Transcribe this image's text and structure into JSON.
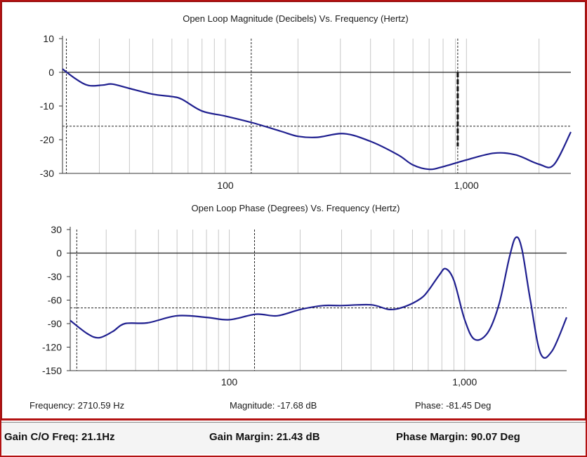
{
  "chart_data": [
    {
      "type": "line",
      "title": "Open Loop Magnitude (Decibels) Vs. Frequency (Hertz)",
      "x_scale": "log",
      "xlim": [
        21.1,
        2710.59
      ],
      "ylim": [
        -30,
        10
      ],
      "yticks": [
        10,
        0,
        -10,
        -20,
        -30
      ],
      "xticks": [
        {
          "value": 100,
          "label": "100"
        },
        {
          "value": 1000,
          "label": "1,000"
        }
      ],
      "grid": true,
      "reference_lines": {
        "h": [
          0,
          -16
        ],
        "v": [
          21.9,
          128,
          920
        ]
      },
      "marker": {
        "x": 920,
        "y_from": 0,
        "y_to": -22,
        "style": "dashed-bold"
      },
      "series": [
        {
          "color": "#1f1f8f",
          "x": [
            21.1,
            24,
            27,
            31,
            34,
            40,
            50,
            60,
            66,
            80,
            100,
            130,
            170,
            200,
            240,
            310,
            400,
            520,
            600,
            700,
            800,
            1000,
            1300,
            1600,
            2000,
            2300,
            2710.59
          ],
          "y": [
            1,
            -2,
            -3.9,
            -3.8,
            -3.5,
            -4.8,
            -6.5,
            -7.2,
            -8,
            -11.5,
            -13,
            -15,
            -17.5,
            -19,
            -19.3,
            -18.2,
            -20.5,
            -24.5,
            -27.5,
            -28.8,
            -28,
            -26,
            -24,
            -24.5,
            -27.3,
            -27.5,
            -17.7
          ]
        }
      ]
    },
    {
      "type": "line",
      "title": "Open Loop Phase (Degrees) Vs. Frequency (Hertz)",
      "x_scale": "log",
      "xlim": [
        21.1,
        2710.59
      ],
      "ylim": [
        -150,
        30
      ],
      "yticks": [
        30,
        0,
        -30,
        -60,
        -90,
        -120,
        -150
      ],
      "xticks": [
        {
          "value": 100,
          "label": "100"
        },
        {
          "value": 1000,
          "label": "1,000"
        }
      ],
      "grid": true,
      "reference_lines": {
        "h": [
          0,
          -70
        ],
        "v": [
          22.5,
          128
        ]
      },
      "series": [
        {
          "color": "#1f1f8f",
          "x": [
            21.1,
            25,
            28,
            32,
            36,
            45,
            60,
            80,
            100,
            130,
            160,
            200,
            250,
            300,
            400,
            480,
            560,
            650,
            700,
            780,
            830,
            900,
            1000,
            1100,
            1250,
            1400,
            1550,
            1650,
            1750,
            1900,
            2100,
            2350,
            2710.59
          ],
          "y": [
            -86,
            -103,
            -108,
            -100,
            -90,
            -89,
            -80,
            -82,
            -85,
            -78,
            -80,
            -72,
            -67,
            -67,
            -66,
            -72,
            -68,
            -58,
            -48,
            -28,
            -20,
            -35,
            -85,
            -110,
            -102,
            -65,
            -5,
            20,
            5,
            -60,
            -128,
            -125,
            -82
          ]
        }
      ]
    }
  ],
  "readouts": {
    "frequency": "Frequency: 2710.59 Hz",
    "magnitude": "Magnitude: -17.68 dB",
    "phase": "Phase: -81.45 Deg"
  },
  "status": {
    "gain_co_freq": "Gain C/O Freq: 21.1Hz",
    "gain_margin": "Gain Margin: 21.43 dB",
    "phase_margin": "Phase Margin: 90.07 Deg"
  }
}
